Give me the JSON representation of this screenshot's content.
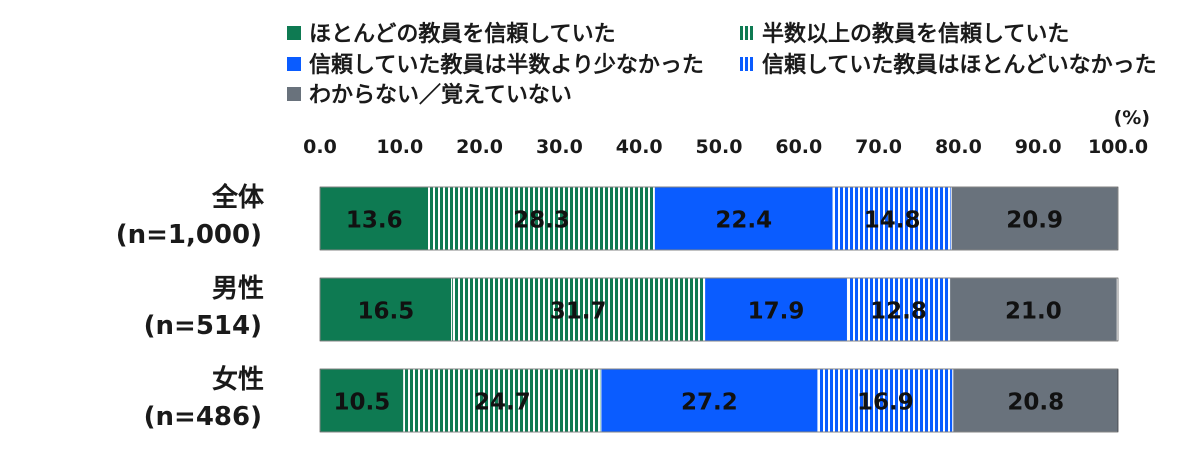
{
  "chart_data": {
    "type": "bar",
    "orientation": "horizontal",
    "stacked": true,
    "percent": true,
    "unit_label": "(%)",
    "xlim": [
      0,
      100
    ],
    "ticks": [
      "0.0",
      "10.0",
      "20.0",
      "30.0",
      "40.0",
      "50.0",
      "60.0",
      "70.0",
      "80.0",
      "90.0",
      "100.0"
    ],
    "categories": [
      [
        "全体",
        "(n=1,000)"
      ],
      [
        "男性",
        "(n=514)"
      ],
      [
        "女性",
        "(n=486)"
      ]
    ],
    "series": [
      {
        "name": "ほとんどの教員を信頼していた",
        "color": "#0e7a52",
        "pattern": "solid",
        "values": [
          13.6,
          16.5,
          10.5
        ]
      },
      {
        "name": "半数以上の教員を信頼していた",
        "color": "#0e7a52",
        "pattern": "stripes",
        "values": [
          28.3,
          31.7,
          24.7
        ]
      },
      {
        "name": "信頼していた教員は半数より少なかった",
        "color": "#0a5cff",
        "pattern": "solid",
        "values": [
          22.4,
          17.9,
          27.2
        ]
      },
      {
        "name": "信頼していた教員はほとんどいなかった",
        "color": "#0a5cff",
        "pattern": "stripes",
        "values": [
          14.8,
          12.8,
          16.9
        ]
      },
      {
        "name": "わからない／覚えていない",
        "color": "#69727c",
        "pattern": "solid",
        "values": [
          20.9,
          21.0,
          20.8
        ]
      }
    ],
    "legend_position": "top"
  }
}
